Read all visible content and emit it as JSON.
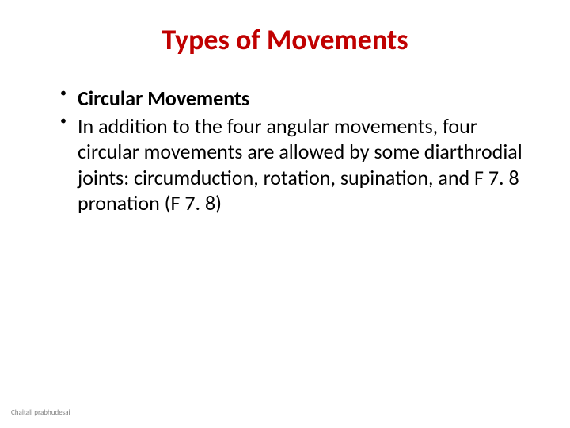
{
  "title": {
    "text": "Types of Movements",
    "color": "#c00000",
    "fontsize": 36,
    "weight": 700
  },
  "bullets": [
    {
      "text": "Circular Movements",
      "bold": true,
      "color": "#000000",
      "fontsize": 26
    },
    {
      "text": "In addition to the four angular movements, four circular movements are allowed by some diarthrodial joints: circumduction, rotation, supination, and F 7. 8 pronation (F 7. 8)",
      "bold": false,
      "color": "#000000",
      "fontsize": 26
    }
  ],
  "footer": {
    "text": "Chaitali prabhudesai",
    "color": "#808080",
    "fontsize": 9
  },
  "background_color": "#ffffff"
}
